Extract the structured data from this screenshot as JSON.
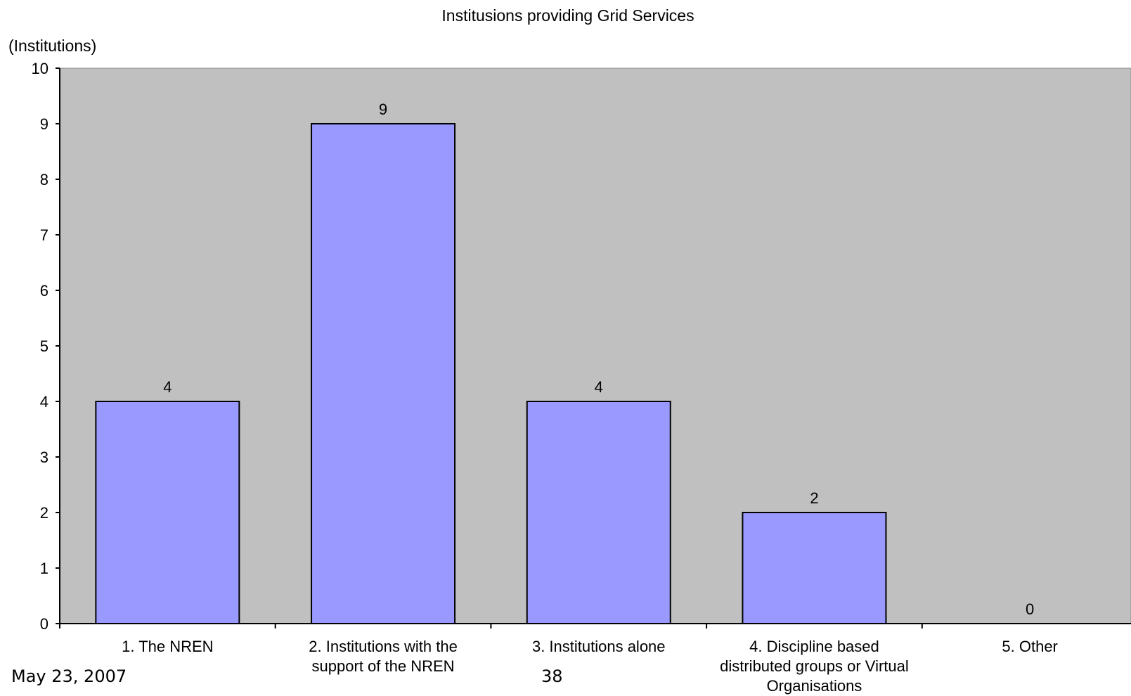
{
  "chart_data": {
    "type": "bar",
    "title": "Institusions providing Grid Services",
    "ylabel": "(Institutions)",
    "xlabel": "",
    "categories": [
      [
        "1. The NREN"
      ],
      [
        "2. Institutions with the",
        "support of the NREN"
      ],
      [
        "3. Institutions alone"
      ],
      [
        "4. Discipline based",
        "distributed groups or Virtual",
        "Organisations"
      ],
      [
        "5. Other"
      ]
    ],
    "values": [
      4,
      9,
      4,
      2,
      0
    ],
    "data_labels": [
      "4",
      "9",
      "4",
      "2",
      "0"
    ],
    "yticks": [
      "0",
      "1",
      "2",
      "3",
      "4",
      "5",
      "6",
      "7",
      "8",
      "9",
      "10"
    ],
    "ylim": [
      0,
      10
    ],
    "grid": false,
    "legend": "none",
    "colors": {
      "plot_background": "#c0c0c0",
      "bar_fill": "#9999ff",
      "bar_stroke": "#000000",
      "axis": "#000000"
    }
  },
  "footer": {
    "date": "May 23, 2007",
    "page_number": "38"
  }
}
